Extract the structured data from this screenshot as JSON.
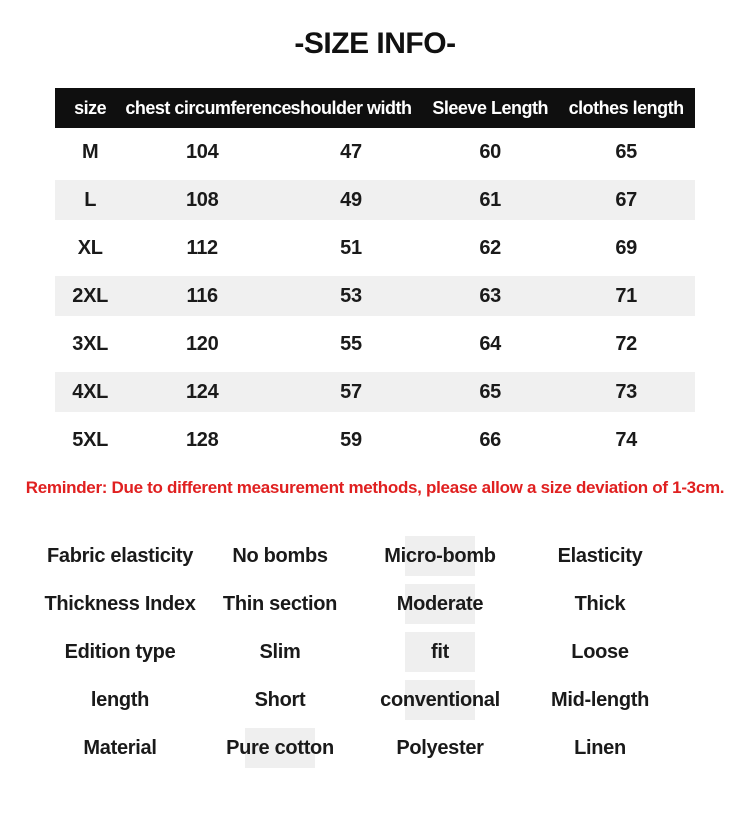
{
  "page": {
    "title": "-SIZE INFO-"
  },
  "size_table": {
    "headers": [
      "size",
      "chest circumference",
      "shoulder width",
      "Sleeve Length",
      "clothes length"
    ],
    "rows": [
      [
        "M",
        "104",
        "47",
        "60",
        "65"
      ],
      [
        "L",
        "108",
        "49",
        "61",
        "67"
      ],
      [
        "XL",
        "112",
        "51",
        "62",
        "69"
      ],
      [
        "2XL",
        "116",
        "53",
        "63",
        "71"
      ],
      [
        "3XL",
        "120",
        "55",
        "64",
        "72"
      ],
      [
        "4XL",
        "124",
        "57",
        "65",
        "73"
      ],
      [
        "5XL",
        "128",
        "59",
        "66",
        "74"
      ]
    ]
  },
  "reminder": "Reminder: Due to different measurement methods, please allow a size deviation of 1-3cm.",
  "attributes": {
    "rows": [
      {
        "label": "Fabric elasticity",
        "options": [
          {
            "text": "No bombs",
            "highlighted": false
          },
          {
            "text": "Micro-bomb",
            "highlighted": true
          },
          {
            "text": "Elasticity",
            "highlighted": false
          }
        ]
      },
      {
        "label": "Thickness Index",
        "options": [
          {
            "text": "Thin section",
            "highlighted": false
          },
          {
            "text": "Moderate",
            "highlighted": true
          },
          {
            "text": "Thick",
            "highlighted": false
          }
        ]
      },
      {
        "label": "Edition type",
        "options": [
          {
            "text": "Slim",
            "highlighted": false
          },
          {
            "text": "fit",
            "highlighted": true
          },
          {
            "text": "Loose",
            "highlighted": false
          }
        ]
      },
      {
        "label": "length",
        "options": [
          {
            "text": "Short",
            "highlighted": false
          },
          {
            "text": "conventional",
            "highlighted": true
          },
          {
            "text": "Mid-length",
            "highlighted": false
          }
        ]
      },
      {
        "label": "Material",
        "options": [
          {
            "text": "Pure cotton",
            "highlighted": true
          },
          {
            "text": "Polyester",
            "highlighted": false
          },
          {
            "text": "Linen",
            "highlighted": false
          }
        ]
      }
    ]
  },
  "colors": {
    "header_bg": "#0f0f0f",
    "header_text": "#ffffff",
    "row_stripe": "#f0f0f0",
    "option_highlight": "#efefef",
    "reminder_red": "#e02020",
    "body_text": "#1a1a1a"
  }
}
